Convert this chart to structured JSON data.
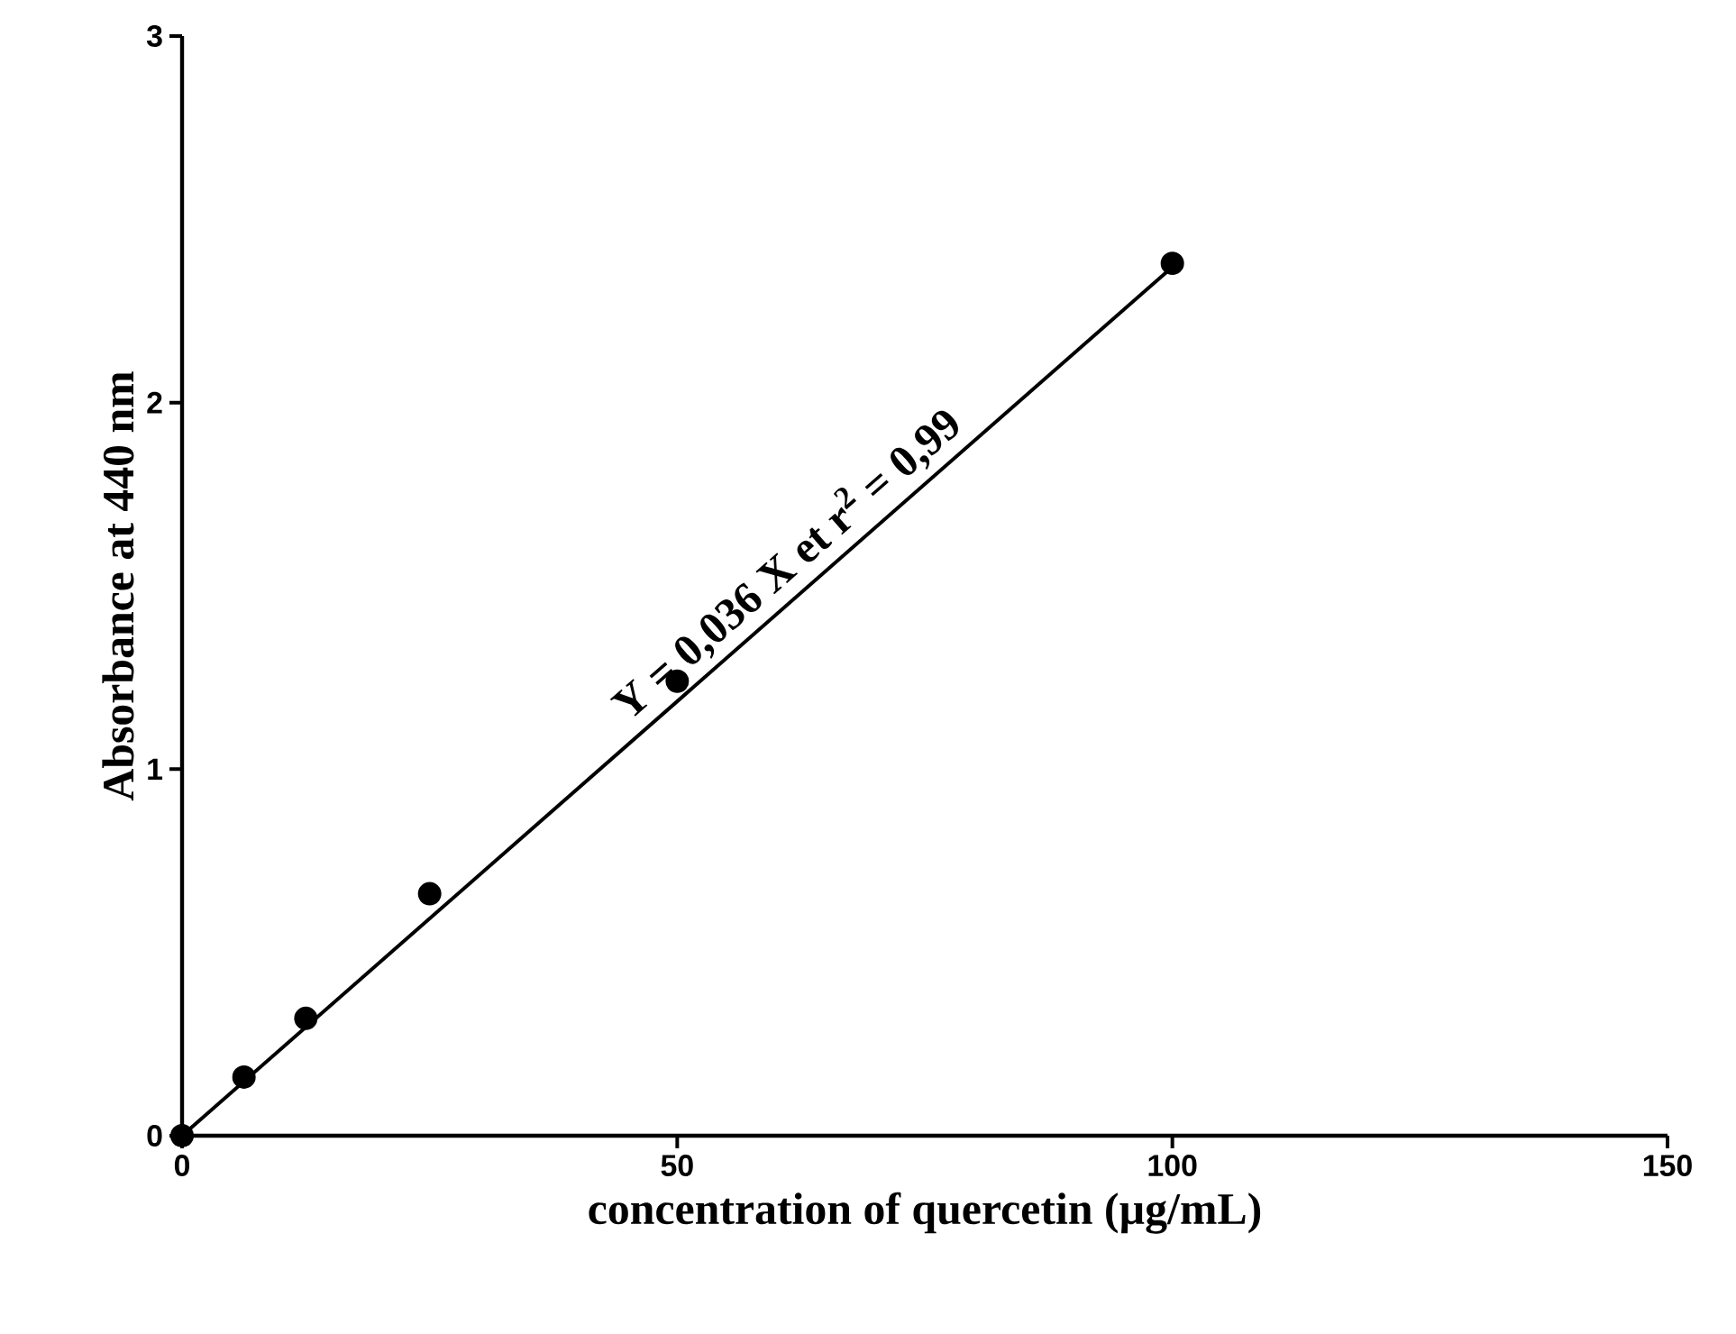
{
  "chart_data": {
    "type": "scatter",
    "xlabel": "concentration of quercetin (µg/mL)",
    "ylabel": "Absorbance at 440 nm",
    "xlim": [
      0,
      150
    ],
    "ylim": [
      0,
      3
    ],
    "xticks": [
      0,
      50,
      100,
      150
    ],
    "yticks": [
      0,
      1,
      2,
      3
    ],
    "grid": false,
    "annotations": [
      {
        "text": "Y = 0,036 X et r$^{2}$ = 0,99",
        "x": 63,
        "y": 1.5
      }
    ],
    "series": [
      {
        "marker": "circle",
        "color": "#000000",
        "x": [
          0,
          6.25,
          12.5,
          25,
          50,
          100
        ],
        "values": [
          0,
          0.16,
          0.32,
          0.66,
          1.24,
          2.38
        ]
      },
      {
        "type": "line",
        "color": "#000000",
        "x": [
          0,
          100
        ],
        "values": [
          0,
          2.37
        ],
        "marker": "none",
        "line_style": "solid"
      }
    ]
  }
}
